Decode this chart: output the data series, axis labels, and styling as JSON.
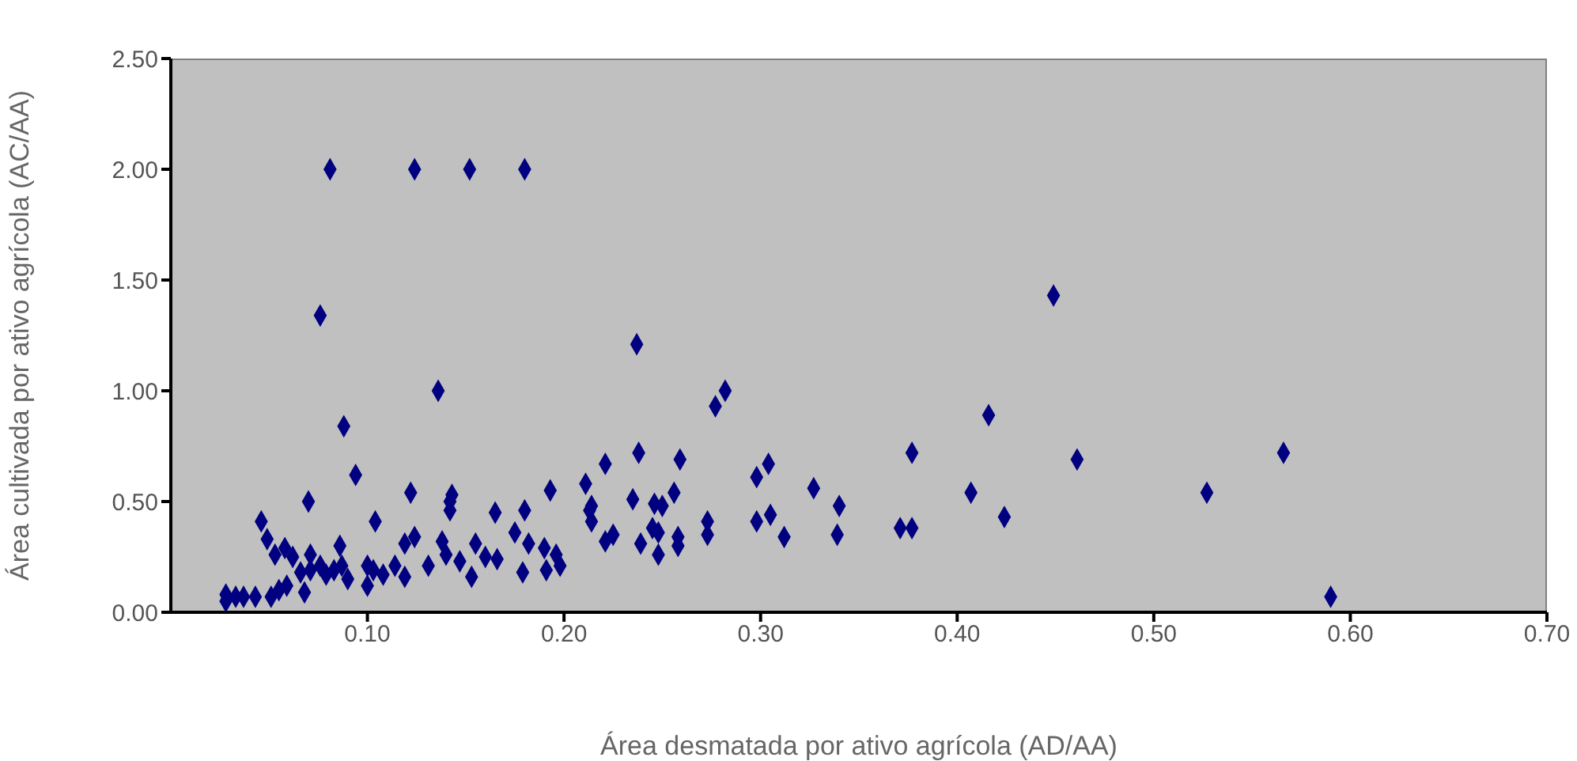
{
  "chart_data": {
    "type": "scatter",
    "xlabel": "Área desmatada por ativo agrícola (AD/AA)",
    "ylabel": "Área cultivada por ativo agrícola (AC/AA)",
    "xlim": [
      0,
      0.7
    ],
    "xticks": [
      {
        "value": 0.1,
        "label": "0.10"
      },
      {
        "value": 0.2,
        "label": "0.20"
      },
      {
        "value": 0.3,
        "label": "0.30"
      },
      {
        "value": 0.4,
        "label": "0.40"
      },
      {
        "value": 0.5,
        "label": "0.50"
      },
      {
        "value": 0.6,
        "label": "0.60"
      },
      {
        "value": 0.7,
        "label": "0.70"
      }
    ],
    "ylim": [
      0,
      2.5
    ],
    "yticks": [
      {
        "value": 0,
        "label": "0.00"
      },
      {
        "value": 0.5,
        "label": "0.50"
      },
      {
        "value": 1,
        "label": "1.00"
      },
      {
        "value": 1.5,
        "label": "1.50"
      },
      {
        "value": 2,
        "label": "2.00"
      },
      {
        "value": 2.5,
        "label": "2.50"
      }
    ],
    "grid": false,
    "legend": false,
    "marker": "diamond",
    "series": [
      {
        "color": "#000080",
        "x": [
          0.081,
          0.124,
          0.152,
          0.18,
          0.076,
          0.136,
          0.088,
          0.094,
          0.237,
          0.449,
          0.416,
          0.461,
          0.566,
          0.527,
          0.59,
          0.407,
          0.424,
          0.377,
          0.377,
          0.371,
          0.34,
          0.339,
          0.327,
          0.312,
          0.304,
          0.298,
          0.305,
          0.298,
          0.282,
          0.277,
          0.273,
          0.273,
          0.259,
          0.258,
          0.246,
          0.248,
          0.238,
          0.235,
          0.239,
          0.221,
          0.211,
          0.213,
          0.25,
          0.256,
          0.221,
          0.225,
          0.245,
          0.248,
          0.258,
          0.196,
          0.198,
          0.028,
          0.033,
          0.037,
          0.043,
          0.046,
          0.049,
          0.053,
          0.055,
          0.051,
          0.059,
          0.062,
          0.07,
          0.068,
          0.066,
          0.071,
          0.076,
          0.086,
          0.083,
          0.087,
          0.09,
          0.1,
          0.103,
          0.104,
          0.108,
          0.114,
          0.119,
          0.119,
          0.122,
          0.124,
          0.131,
          0.138,
          0.14,
          0.142,
          0.143,
          0.142,
          0.147,
          0.153,
          0.155,
          0.16,
          0.165,
          0.166,
          0.175,
          0.179,
          0.18,
          0.182,
          0.19,
          0.191,
          0.193,
          0.214,
          0.214,
          0.058,
          0.071,
          0.079,
          0.1,
          0.028
        ],
        "values": [
          2.0,
          2.0,
          2.0,
          2.0,
          1.34,
          1.0,
          0.84,
          0.62,
          1.21,
          1.43,
          0.89,
          0.69,
          0.72,
          0.54,
          0.07,
          0.54,
          0.43,
          0.72,
          0.38,
          0.38,
          0.48,
          0.35,
          0.56,
          0.34,
          0.67,
          0.61,
          0.44,
          0.41,
          1.0,
          0.93,
          0.41,
          0.35,
          0.69,
          0.34,
          0.49,
          0.36,
          0.72,
          0.51,
          0.31,
          0.67,
          0.58,
          0.46,
          0.48,
          0.54,
          0.32,
          0.35,
          0.38,
          0.26,
          0.3,
          0.26,
          0.21,
          0.08,
          0.07,
          0.07,
          0.07,
          0.41,
          0.33,
          0.26,
          0.1,
          0.07,
          0.12,
          0.25,
          0.5,
          0.09,
          0.18,
          0.26,
          0.21,
          0.3,
          0.19,
          0.21,
          0.15,
          0.12,
          0.19,
          0.41,
          0.17,
          0.21,
          0.16,
          0.31,
          0.54,
          0.34,
          0.21,
          0.32,
          0.26,
          0.5,
          0.53,
          0.46,
          0.23,
          0.16,
          0.31,
          0.25,
          0.45,
          0.24,
          0.36,
          0.18,
          0.46,
          0.31,
          0.29,
          0.19,
          0.55,
          0.48,
          0.41,
          0.29,
          0.19,
          0.17,
          0.21,
          0.05
        ]
      }
    ]
  }
}
